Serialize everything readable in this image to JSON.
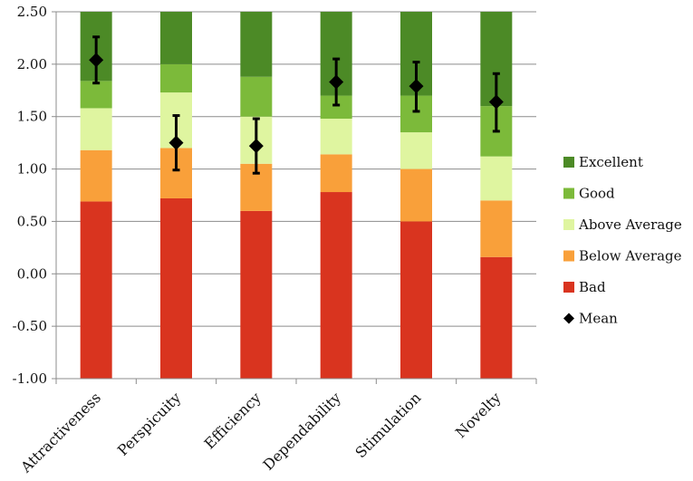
{
  "chart_data": {
    "type": "bar",
    "subtype": "stacked-benchmark-with-mean",
    "title": "",
    "xlabel": "",
    "ylabel": "",
    "ylim": [
      -1.0,
      2.5
    ],
    "yticks": [
      -1.0,
      -0.5,
      0.0,
      0.5,
      1.0,
      1.5,
      2.0,
      2.5
    ],
    "ytick_labels": [
      "-1.00",
      "-0.50",
      "0.00",
      "0.50",
      "1.00",
      "1.50",
      "2.00",
      "2.50"
    ],
    "grid": true,
    "legend_position": "right",
    "categories": [
      "Attractiveness",
      "Perspicuity",
      "Efficiency",
      "Dependability",
      "Stimulation",
      "Novelty"
    ],
    "series": [
      {
        "name": "Bad",
        "color": "#d9341f",
        "values": [
          1.69,
          1.72,
          1.6,
          1.78,
          1.5,
          1.16
        ]
      },
      {
        "name": "Below Average",
        "color": "#f9a03a",
        "values": [
          0.49,
          0.48,
          0.45,
          0.36,
          0.5,
          0.54
        ]
      },
      {
        "name": "Above Average",
        "color": "#dff5a0",
        "values": [
          0.4,
          0.53,
          0.45,
          0.34,
          0.35,
          0.42
        ]
      },
      {
        "name": "Good",
        "color": "#7cba3a",
        "values": [
          0.26,
          0.27,
          0.38,
          0.22,
          0.35,
          0.48
        ]
      },
      {
        "name": "Excellent",
        "color": "#4c8a26",
        "values": [
          0.66,
          0.5,
          0.62,
          0.8,
          0.8,
          0.9
        ]
      }
    ],
    "mean": {
      "name": "Mean",
      "color": "#000000",
      "values": [
        2.04,
        1.25,
        1.22,
        1.83,
        1.79,
        1.64
      ],
      "error_low": [
        1.82,
        0.99,
        0.96,
        1.61,
        1.55,
        1.36
      ],
      "error_high": [
        2.26,
        1.51,
        1.48,
        2.05,
        2.02,
        1.91
      ]
    },
    "legend": [
      "Excellent",
      "Good",
      "Above Average",
      "Below Average",
      "Bad",
      "Mean"
    ]
  }
}
